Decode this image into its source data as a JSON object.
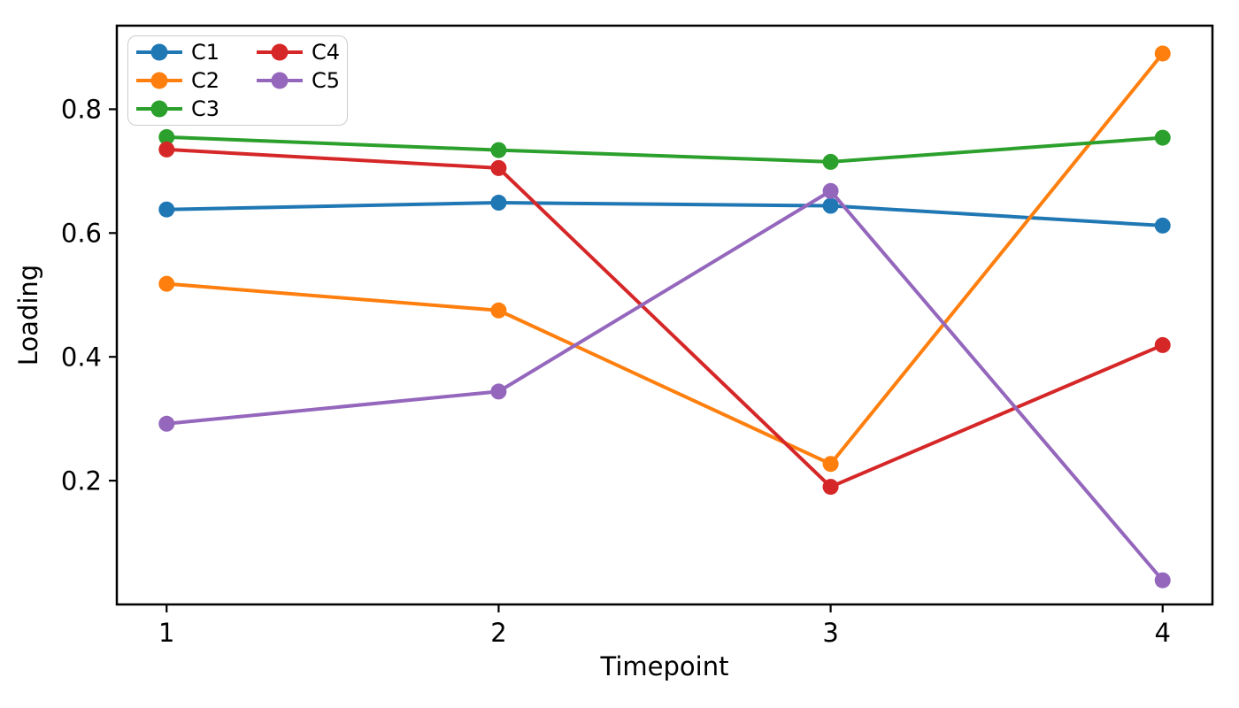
{
  "chart_data": {
    "type": "line",
    "x": [
      1,
      2,
      3,
      4
    ],
    "series": [
      {
        "name": "C1",
        "color": "#1f77b4",
        "values": [
          0.638,
          0.649,
          0.644,
          0.612
        ]
      },
      {
        "name": "C2",
        "color": "#ff7f0e",
        "values": [
          0.518,
          0.475,
          0.227,
          0.89
        ]
      },
      {
        "name": "C3",
        "color": "#2ca02c",
        "values": [
          0.755,
          0.734,
          0.715,
          0.754
        ]
      },
      {
        "name": "C4",
        "color": "#d62728",
        "values": [
          0.735,
          0.705,
          0.19,
          0.419
        ]
      },
      {
        "name": "C5",
        "color": "#9467bd",
        "values": [
          0.292,
          0.344,
          0.668,
          0.039
        ]
      }
    ],
    "title": "",
    "xlabel": "Timepoint",
    "ylabel": "Loading",
    "xticks": {
      "values": [
        1,
        2,
        3,
        4
      ],
      "labels": [
        "1",
        "2",
        "3",
        "4"
      ]
    },
    "yticks": {
      "values": [
        0.2,
        0.4,
        0.6,
        0.8
      ],
      "labels": [
        "0.2",
        "0.4",
        "0.6",
        "0.8"
      ]
    },
    "xlim": [
      0.85,
      4.15
    ],
    "ylim": [
      0,
      0.935
    ],
    "grid": false,
    "legend": {
      "position": "upper-left",
      "columns": 2,
      "frame": true
    }
  }
}
